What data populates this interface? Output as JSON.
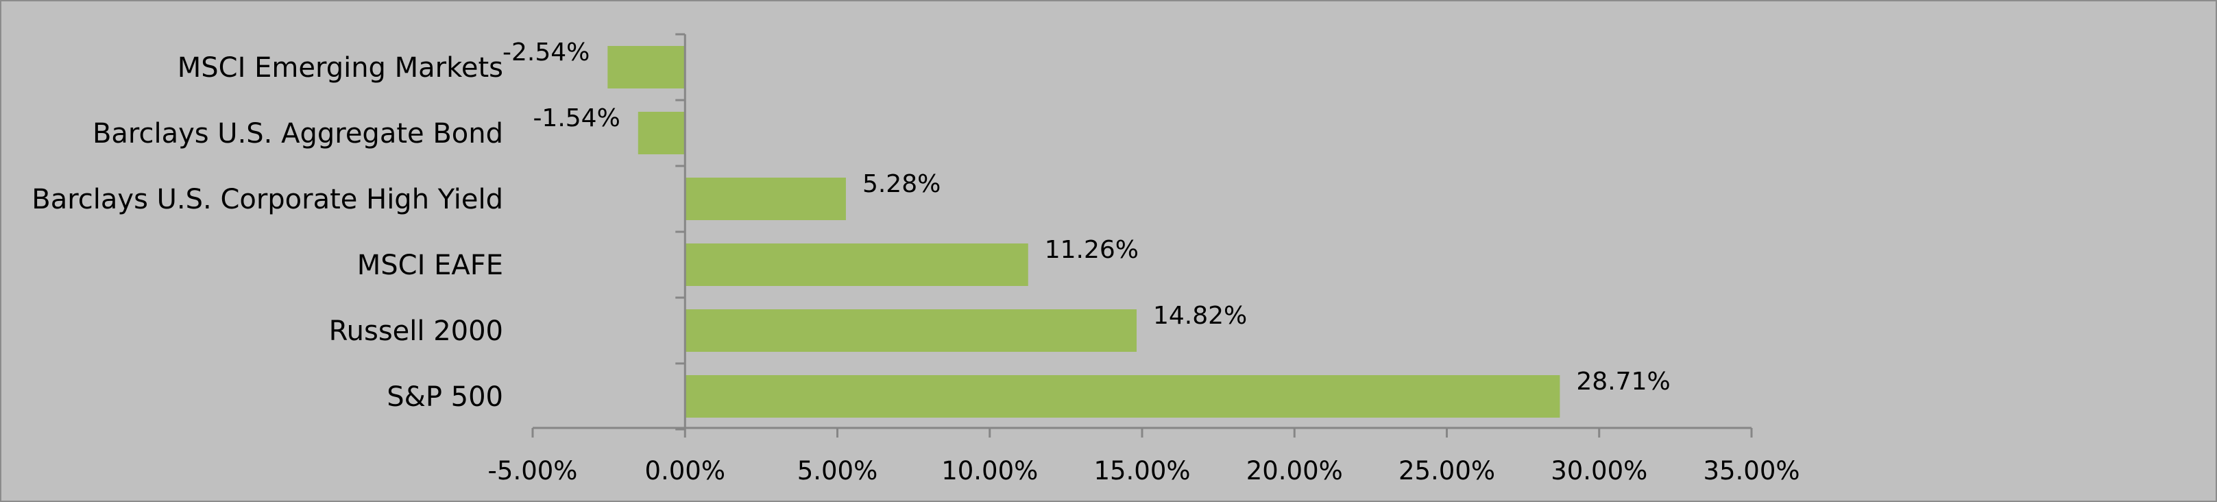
{
  "chart_data": {
    "type": "bar",
    "orientation": "horizontal",
    "categories": [
      "S&P 500",
      "Russell 2000",
      "MSCI EAFE",
      "Barclays U.S. Corporate High Yield",
      "Barclays U.S. Aggregate Bond",
      "MSCI Emerging Markets"
    ],
    "values": [
      28.71,
      14.82,
      11.26,
      5.28,
      -1.54,
      -2.54
    ],
    "data_labels": [
      "28.71%",
      "14.82%",
      "11.26%",
      "5.28%",
      "-1.54%",
      "-2.54%"
    ],
    "xlim": [
      -5,
      35
    ],
    "xticks": [
      -5,
      0,
      5,
      10,
      15,
      20,
      25,
      30,
      35
    ],
    "xtick_labels": [
      "-5.00%",
      "0.00%",
      "5.00%",
      "10.00%",
      "15.00%",
      "20.00%",
      "25.00%",
      "30.00%",
      "35.00%"
    ],
    "title": "",
    "xlabel": "",
    "ylabel": "",
    "grid": false,
    "legend": "none",
    "colors": {
      "bar": "#9bbb59",
      "background": "#c0c0c0",
      "axis": "#868686",
      "border": "#8c8c8c",
      "text": "#000000"
    }
  }
}
